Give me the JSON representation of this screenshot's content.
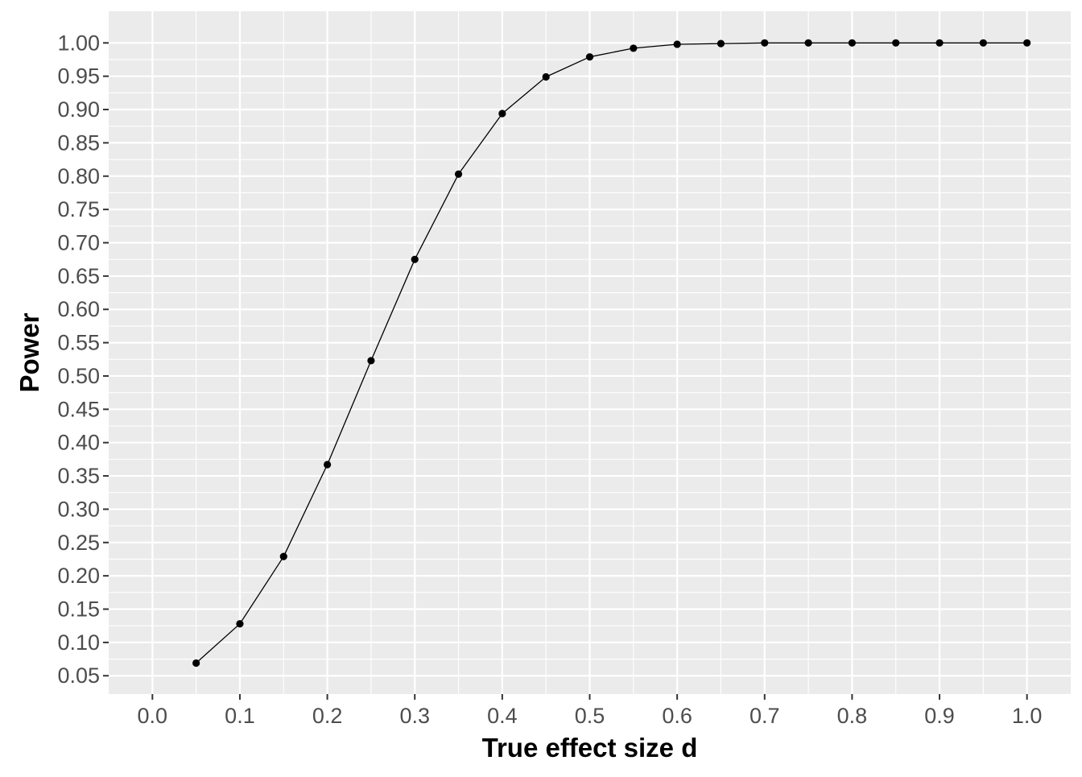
{
  "chart_data": {
    "type": "line",
    "title": "",
    "xlabel": "True effect size d",
    "ylabel": "Power",
    "xlim": [
      -0.05,
      1.05
    ],
    "ylim": [
      0.0225,
      1.0475
    ],
    "x_ticks": [
      0.0,
      0.1,
      0.2,
      0.3,
      0.4,
      0.5,
      0.6,
      0.7,
      0.8,
      0.9,
      1.0
    ],
    "x_tick_labels": [
      "0.0",
      "0.1",
      "0.2",
      "0.3",
      "0.4",
      "0.5",
      "0.6",
      "0.7",
      "0.8",
      "0.9",
      "1.0"
    ],
    "y_ticks": [
      0.05,
      0.1,
      0.15,
      0.2,
      0.25,
      0.3,
      0.35,
      0.4,
      0.45,
      0.5,
      0.55,
      0.6,
      0.65,
      0.7,
      0.75,
      0.8,
      0.85,
      0.9,
      0.95,
      1.0
    ],
    "y_tick_labels": [
      "0.05",
      "0.10",
      "0.15",
      "0.20",
      "0.25",
      "0.30",
      "0.35",
      "0.40",
      "0.45",
      "0.50",
      "0.55",
      "0.60",
      "0.65",
      "0.70",
      "0.75",
      "0.80",
      "0.85",
      "0.90",
      "0.95",
      "1.00"
    ],
    "grid": true,
    "legend": "none",
    "series": [
      {
        "x": [
          0.05,
          0.1,
          0.15,
          0.2,
          0.25,
          0.3,
          0.35,
          0.4,
          0.45,
          0.5,
          0.55,
          0.6,
          0.65,
          0.7,
          0.75,
          0.8,
          0.85,
          0.9,
          0.95,
          1.0
        ],
        "y": [
          0.069,
          0.128,
          0.229,
          0.367,
          0.523,
          0.675,
          0.803,
          0.894,
          0.949,
          0.979,
          0.992,
          0.998,
          0.999,
          1.0,
          1.0,
          1.0,
          1.0,
          1.0,
          1.0,
          1.0
        ]
      }
    ],
    "colors": {
      "panel_background": "#ebebeb",
      "grid_major": "#ffffff",
      "line": "#000000",
      "points": "#000000",
      "tick_text": "#4d4d4d",
      "axis_title": "#000000"
    }
  }
}
